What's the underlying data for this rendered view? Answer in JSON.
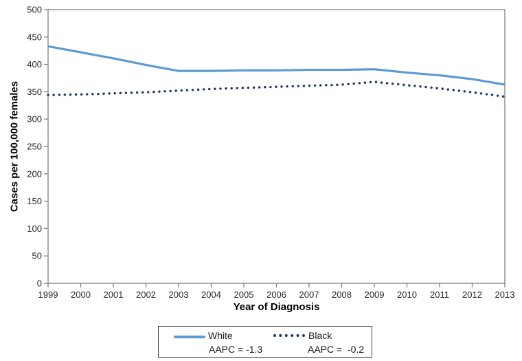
{
  "chart_data": {
    "type": "line",
    "title": "",
    "xlabel": "Year of Diagnosis",
    "ylabel": "Cases per 100,000 females",
    "categories": [
      "1999",
      "2000",
      "2001",
      "2002",
      "2003",
      "2004",
      "2005",
      "2006",
      "2007",
      "2008",
      "2009",
      "2010",
      "2011",
      "2012",
      "2013"
    ],
    "series": [
      {
        "name": "White",
        "aapc_label": "AAPC = -1.3",
        "color": "#5B9BD5",
        "style": "solid",
        "values": [
          433,
          422,
          411,
          399,
          388,
          388,
          389,
          389,
          390,
          390,
          391,
          385,
          380,
          373,
          363
        ]
      },
      {
        "name": "Black",
        "aapc_label": "AAPC =  -0.2",
        "color": "#1F3864",
        "style": "dotted",
        "values": [
          344,
          345,
          347,
          349,
          352,
          355,
          357,
          359,
          361,
          363,
          368,
          362,
          356,
          349,
          341
        ]
      }
    ],
    "ylim": [
      0,
      500
    ],
    "y_ticks": [
      0,
      50,
      100,
      150,
      200,
      250,
      300,
      350,
      400,
      450,
      500
    ],
    "grid": false,
    "legend_position": "bottom",
    "axis_color": "#808080",
    "tick_label_color": "#262626"
  }
}
